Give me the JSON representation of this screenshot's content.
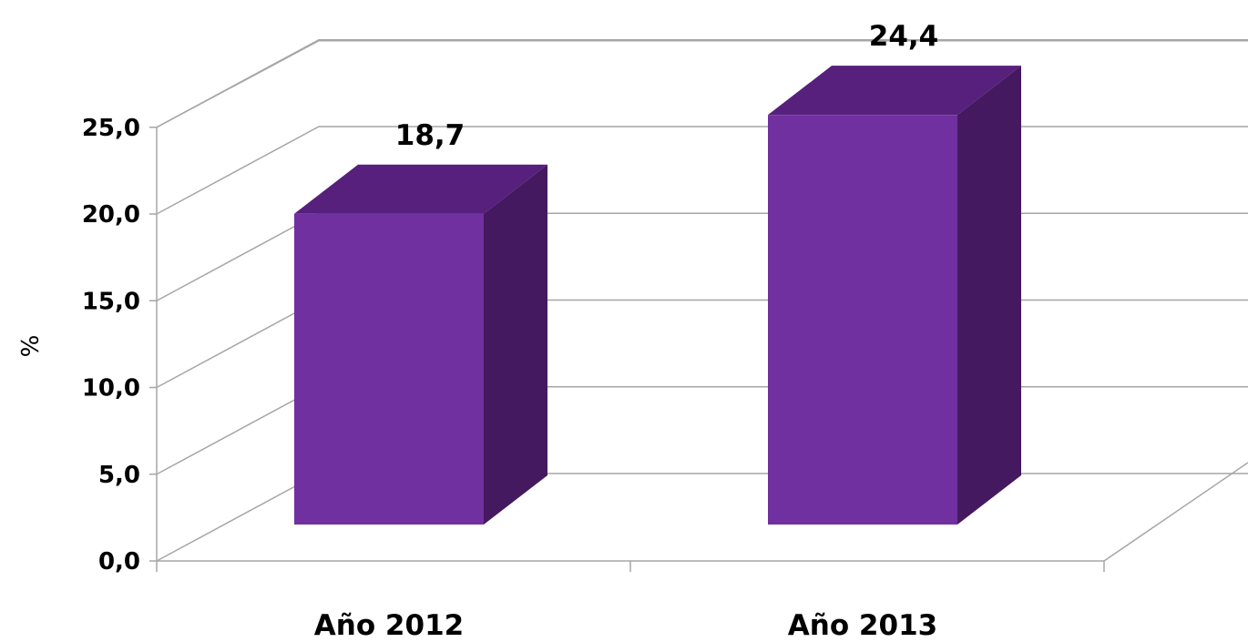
{
  "chart_data": {
    "type": "bar",
    "style": "3d-column",
    "categories": [
      "Año 2012",
      "Año 2013"
    ],
    "values": [
      18.7,
      24.4
    ],
    "data_labels": [
      "18,7",
      "24,4"
    ],
    "title": "",
    "xlabel": "",
    "ylabel": "%",
    "ylim": [
      0,
      25
    ],
    "yticks": [
      "0,0",
      "5,0",
      "10,0",
      "15,0",
      "20,0",
      "25,0"
    ],
    "grid": true,
    "legend": "none",
    "colors": {
      "bar_front": "#7030a0",
      "bar_top": "#56207c",
      "bar_side": "#45195f",
      "grid": "#a6a6a6"
    }
  }
}
